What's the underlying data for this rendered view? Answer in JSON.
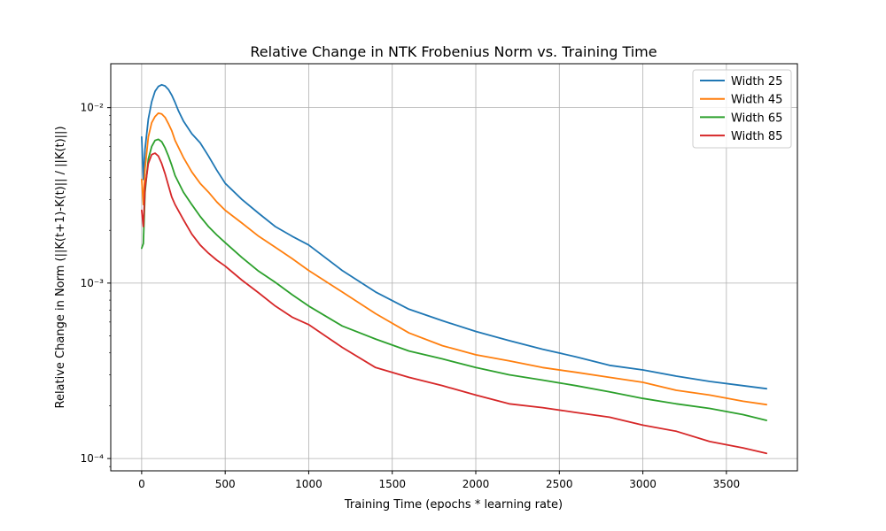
{
  "chart_data": {
    "type": "line",
    "title": "Relative Change in NTK Frobenius Norm vs. Training Time",
    "xlabel": "Training Time (epochs * learning rate)",
    "ylabel": "Relative Change in Norm (||K(t+1)-K(t)|| / ||K(t)||)",
    "yscale": "log",
    "xlim": [
      -185,
      3925
    ],
    "ylim": [
      8.51e-05,
      0.0178
    ],
    "grid": true,
    "legend_position": "upper right",
    "x_ticks": [
      0,
      500,
      1000,
      1500,
      2000,
      2500,
      3000,
      3500
    ],
    "x_tick_labels": [
      "0",
      "500",
      "1000",
      "1500",
      "2000",
      "2500",
      "3000",
      "3500"
    ],
    "y_ticks": [
      0.0001,
      0.001,
      0.01
    ],
    "y_tick_labels": [
      "10⁻⁴",
      "10⁻³",
      "10⁻²"
    ],
    "series": [
      {
        "name": "Width 25",
        "color": "#1f77b4",
        "x": [
          0,
          10,
          20,
          40,
          60,
          80,
          100,
          120,
          140,
          160,
          180,
          200,
          220,
          250,
          300,
          350,
          400,
          450,
          500,
          600,
          700,
          800,
          900,
          1000,
          1200,
          1400,
          1600,
          1800,
          2000,
          2200,
          2400,
          2600,
          2800,
          3000,
          3200,
          3400,
          3600,
          3740
        ],
        "y": [
          0.0068,
          0.0039,
          0.0058,
          0.0086,
          0.0108,
          0.0124,
          0.0132,
          0.0135,
          0.0133,
          0.0127,
          0.0118,
          0.0107,
          0.0096,
          0.0084,
          0.0071,
          0.0063,
          0.0053,
          0.0044,
          0.0037,
          0.003,
          0.0025,
          0.0021,
          0.00185,
          0.00165,
          0.00118,
          0.00089,
          0.00071,
          0.00061,
          0.00053,
          0.00047,
          0.00042,
          0.00038,
          0.00034,
          0.00032,
          0.000295,
          0.000275,
          0.00026,
          0.00025
        ]
      },
      {
        "name": "Width 45",
        "color": "#ff7f0e",
        "x": [
          0,
          10,
          20,
          40,
          60,
          80,
          100,
          120,
          140,
          160,
          180,
          200,
          250,
          300,
          350,
          400,
          450,
          500,
          600,
          700,
          800,
          900,
          1000,
          1200,
          1400,
          1600,
          1800,
          2000,
          2200,
          2400,
          2600,
          2800,
          3000,
          3200,
          3400,
          3600,
          3740
        ],
        "y": [
          0.0039,
          0.0028,
          0.0045,
          0.0068,
          0.0082,
          0.0089,
          0.0093,
          0.0092,
          0.0088,
          0.0081,
          0.0074,
          0.0065,
          0.0052,
          0.0043,
          0.0037,
          0.0033,
          0.0029,
          0.0026,
          0.0022,
          0.00185,
          0.0016,
          0.00138,
          0.00118,
          0.00089,
          0.00067,
          0.00052,
          0.00044,
          0.00039,
          0.00036,
          0.00033,
          0.00031,
          0.00029,
          0.000272,
          0.000245,
          0.00023,
          0.000212,
          0.000203
        ]
      },
      {
        "name": "Width 65",
        "color": "#2ca02c",
        "x": [
          0,
          10,
          20,
          40,
          60,
          80,
          100,
          120,
          140,
          160,
          180,
          200,
          250,
          300,
          350,
          400,
          450,
          500,
          600,
          700,
          800,
          900,
          1000,
          1200,
          1400,
          1600,
          1800,
          2000,
          2200,
          2400,
          2600,
          2800,
          3000,
          3200,
          3400,
          3600,
          3740
        ],
        "y": [
          0.00158,
          0.00168,
          0.0033,
          0.0051,
          0.006,
          0.0065,
          0.0066,
          0.0064,
          0.0059,
          0.0053,
          0.0047,
          0.0041,
          0.0033,
          0.0028,
          0.0024,
          0.0021,
          0.00188,
          0.0017,
          0.0014,
          0.00117,
          0.00101,
          0.00086,
          0.00074,
          0.00057,
          0.00048,
          0.00041,
          0.00037,
          0.00033,
          0.0003,
          0.00028,
          0.00026,
          0.00024,
          0.00022,
          0.000205,
          0.000193,
          0.000178,
          0.000165
        ]
      },
      {
        "name": "Width 85",
        "color": "#d62728",
        "x": [
          0,
          10,
          20,
          40,
          60,
          80,
          100,
          120,
          140,
          160,
          180,
          200,
          250,
          300,
          350,
          400,
          450,
          500,
          600,
          700,
          800,
          900,
          1000,
          1200,
          1400,
          1600,
          1800,
          2000,
          2200,
          2400,
          2600,
          2800,
          3000,
          3200,
          3400,
          3600,
          3740
        ],
        "y": [
          0.0026,
          0.0021,
          0.0035,
          0.0048,
          0.0054,
          0.0055,
          0.0053,
          0.0048,
          0.0042,
          0.0036,
          0.0031,
          0.0028,
          0.0023,
          0.0019,
          0.00165,
          0.00148,
          0.00135,
          0.00125,
          0.00104,
          0.00088,
          0.00074,
          0.00064,
          0.00058,
          0.00043,
          0.00033,
          0.00029,
          0.00026,
          0.00023,
          0.000205,
          0.000195,
          0.000183,
          0.000172,
          0.000155,
          0.000143,
          0.000125,
          0.000115,
          0.000107
        ]
      }
    ]
  }
}
